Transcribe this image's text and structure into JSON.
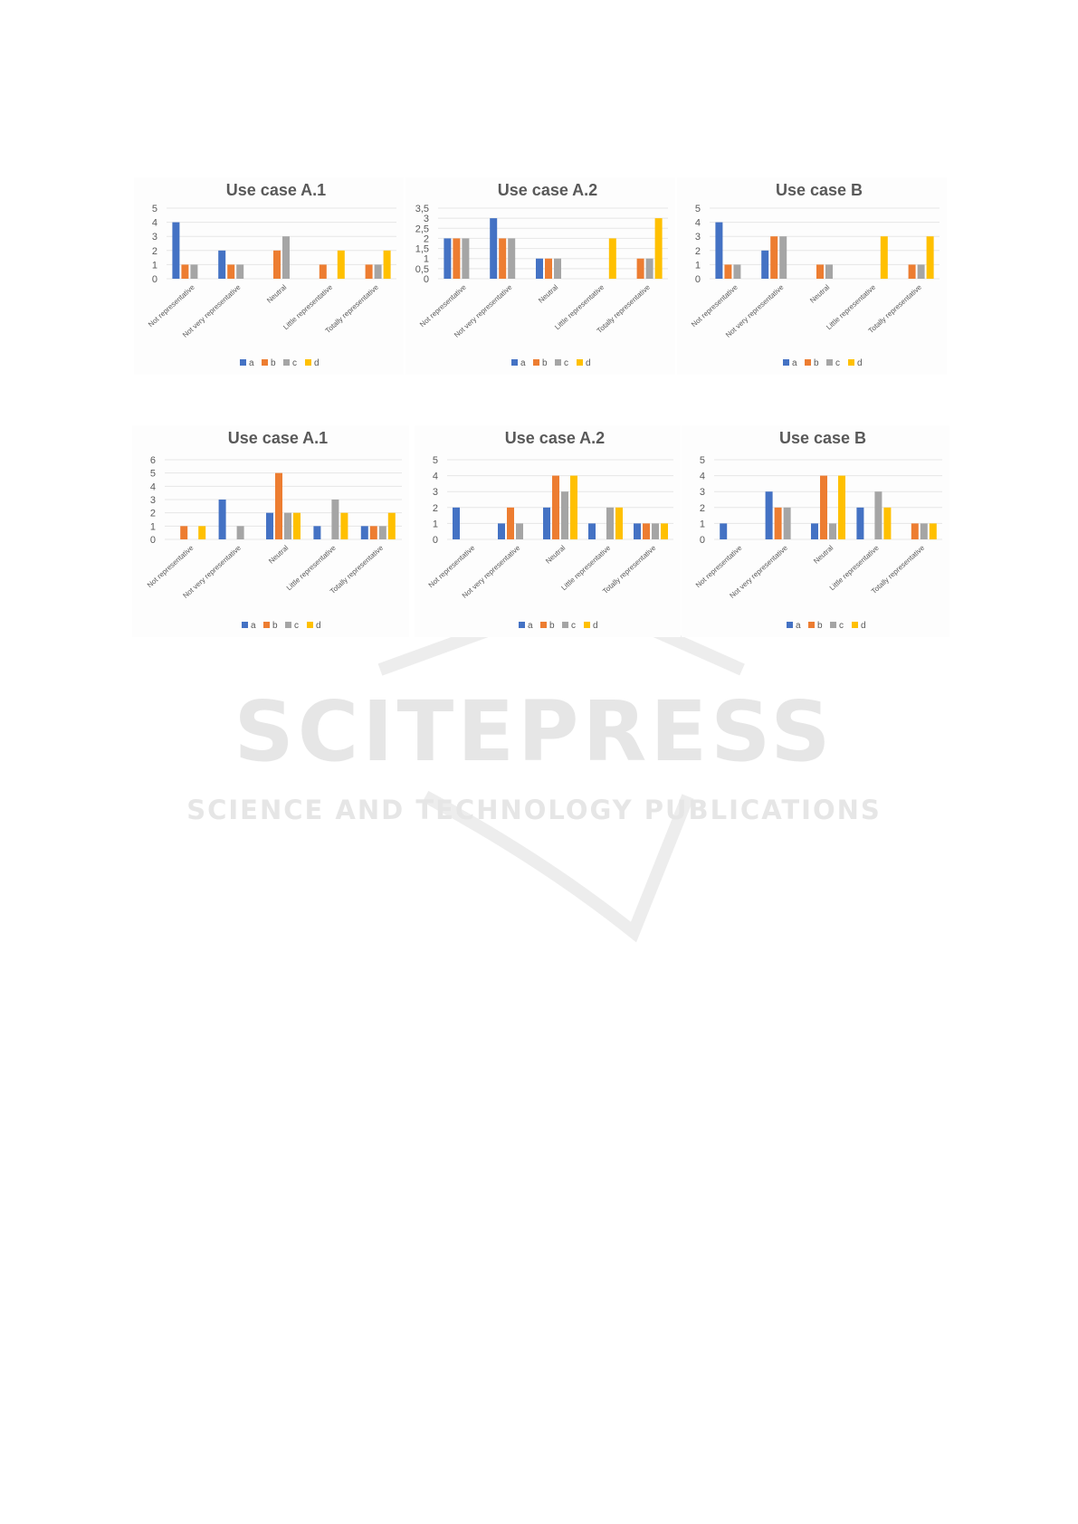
{
  "watermark": {
    "line1": "SCITEPRESS",
    "line2": "SCIENCE AND TECHNOLOGY PUBLICATIONS"
  },
  "colors": {
    "a": "#4472c4",
    "b": "#ed7d31",
    "c": "#a5a5a5",
    "d": "#ffc000"
  },
  "chart_data": [
    {
      "type": "bar",
      "title": "Use case A.1",
      "categories": [
        "Not representative",
        "Not very representative",
        "Neutral",
        "Little representative",
        "Totally representative"
      ],
      "ylim": [
        0,
        5
      ],
      "yticks": [
        "0",
        "1",
        "2",
        "3",
        "4",
        "5"
      ],
      "legend": "bottom",
      "grid": true,
      "series": [
        {
          "name": "a",
          "values": [
            4,
            2,
            0,
            0,
            0
          ]
        },
        {
          "name": "b",
          "values": [
            1,
            1,
            2,
            1,
            1
          ]
        },
        {
          "name": "c",
          "values": [
            1,
            1,
            3,
            0,
            1
          ]
        },
        {
          "name": "d",
          "values": [
            0,
            0,
            0,
            2,
            2
          ]
        }
      ]
    },
    {
      "type": "bar",
      "title": "Use case A.2",
      "categories": [
        "Not representative",
        "Not very representative",
        "Neutral",
        "Little representative",
        "Totally representative"
      ],
      "ylim": [
        0,
        3.5
      ],
      "yticks": [
        "0",
        "0,5",
        "1",
        "1,5",
        "2",
        "2,5",
        "3",
        "3,5"
      ],
      "legend": "bottom",
      "grid": true,
      "series": [
        {
          "name": "a",
          "values": [
            2,
            3,
            1,
            0,
            0
          ]
        },
        {
          "name": "b",
          "values": [
            2,
            2,
            1,
            0,
            1
          ]
        },
        {
          "name": "c",
          "values": [
            2,
            2,
            1,
            0,
            1
          ]
        },
        {
          "name": "d",
          "values": [
            0,
            0,
            0,
            2,
            3
          ]
        }
      ]
    },
    {
      "type": "bar",
      "title": "Use case B",
      "categories": [
        "Not representative",
        "Not very representative",
        "Neutral",
        "Little representative",
        "Totally representative"
      ],
      "ylim": [
        0,
        5
      ],
      "yticks": [
        "0",
        "1",
        "2",
        "3",
        "4",
        "5"
      ],
      "legend": "bottom",
      "grid": true,
      "series": [
        {
          "name": "a",
          "values": [
            4,
            2,
            0,
            0,
            0
          ]
        },
        {
          "name": "b",
          "values": [
            1,
            3,
            1,
            0,
            1
          ]
        },
        {
          "name": "c",
          "values": [
            1,
            3,
            1,
            0,
            1
          ]
        },
        {
          "name": "d",
          "values": [
            0,
            0,
            0,
            3,
            3
          ]
        }
      ]
    },
    {
      "type": "bar",
      "title": "Use case A.1",
      "categories": [
        "Not representative",
        "Not very representative",
        "Neutral",
        "Little representative",
        "Totally representative"
      ],
      "ylim": [
        0,
        6
      ],
      "yticks": [
        "0",
        "1",
        "2",
        "3",
        "4",
        "5",
        "6"
      ],
      "legend": "bottom",
      "grid": true,
      "series": [
        {
          "name": "a",
          "values": [
            0,
            3,
            2,
            1,
            1
          ]
        },
        {
          "name": "b",
          "values": [
            1,
            0,
            5,
            0,
            1
          ]
        },
        {
          "name": "c",
          "values": [
            0,
            1,
            2,
            3,
            1
          ]
        },
        {
          "name": "d",
          "values": [
            1,
            0,
            2,
            2,
            2
          ]
        }
      ]
    },
    {
      "type": "bar",
      "title": "Use case A.2",
      "categories": [
        "Not representative",
        "Not very representative",
        "Neutral",
        "Little representative",
        "Totally representative"
      ],
      "ylim": [
        0,
        5
      ],
      "yticks": [
        "0",
        "1",
        "2",
        "3",
        "4",
        "5"
      ],
      "legend": "bottom",
      "grid": true,
      "series": [
        {
          "name": "a",
          "values": [
            2,
            1,
            2,
            1,
            1
          ]
        },
        {
          "name": "b",
          "values": [
            0,
            2,
            4,
            0,
            1
          ]
        },
        {
          "name": "c",
          "values": [
            0,
            1,
            3,
            2,
            1
          ]
        },
        {
          "name": "d",
          "values": [
            0,
            0,
            4,
            2,
            1
          ]
        }
      ]
    },
    {
      "type": "bar",
      "title": "Use case B",
      "categories": [
        "Not representative",
        "Not very representative",
        "Neutral",
        "Little representative",
        "Totally representative"
      ],
      "ylim": [
        0,
        5
      ],
      "yticks": [
        "0",
        "1",
        "2",
        "3",
        "4",
        "5"
      ],
      "legend": "bottom",
      "grid": true,
      "series": [
        {
          "name": "a",
          "values": [
            1,
            3,
            1,
            2,
            0
          ]
        },
        {
          "name": "b",
          "values": [
            0,
            2,
            4,
            0,
            1
          ]
        },
        {
          "name": "c",
          "values": [
            0,
            2,
            1,
            3,
            1
          ]
        },
        {
          "name": "d",
          "values": [
            0,
            0,
            4,
            2,
            1
          ]
        }
      ]
    }
  ]
}
